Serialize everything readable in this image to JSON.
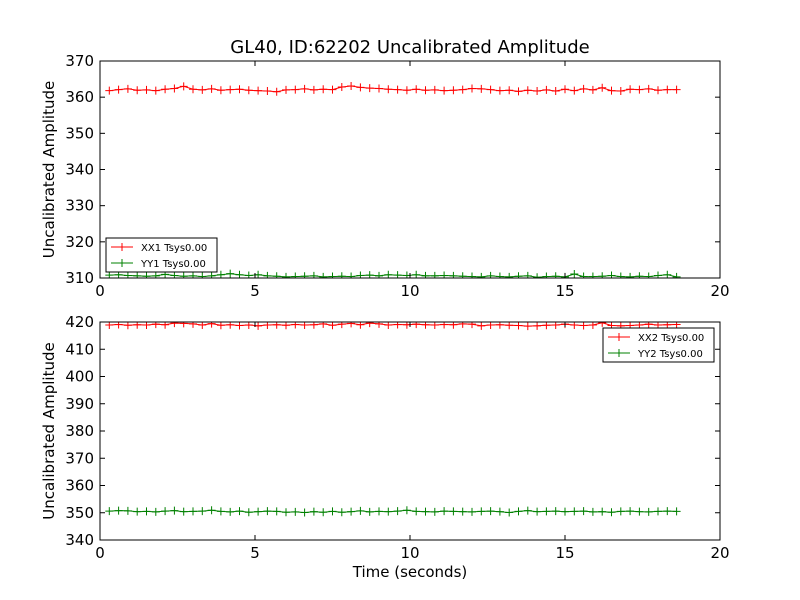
{
  "figure_title": "GL40, ID:62202 Uncalibrated Amplitude",
  "chart_data": [
    {
      "type": "line",
      "ylabel": "Uncalibrated Amplitude",
      "xlabel": "",
      "xlim": [
        0,
        20
      ],
      "ylim": [
        310,
        370
      ],
      "xticks": [
        0,
        5,
        10,
        15,
        20
      ],
      "yticks": [
        310,
        320,
        330,
        340,
        350,
        360,
        370
      ],
      "grid": false,
      "legend_position": "lower-left",
      "x": [
        0.3,
        0.6,
        0.9,
        1.2,
        1.5,
        1.8,
        2.1,
        2.4,
        2.7,
        3.0,
        3.3,
        3.6,
        3.9,
        4.2,
        4.5,
        4.8,
        5.1,
        5.4,
        5.7,
        6.0,
        6.3,
        6.6,
        6.9,
        7.2,
        7.5,
        7.8,
        8.1,
        8.4,
        8.7,
        9.0,
        9.3,
        9.6,
        9.9,
        10.2,
        10.5,
        10.8,
        11.1,
        11.4,
        11.7,
        12.0,
        12.3,
        12.6,
        12.9,
        13.2,
        13.5,
        13.8,
        14.1,
        14.4,
        14.7,
        15.0,
        15.3,
        15.6,
        15.9,
        16.2,
        16.5,
        16.8,
        17.1,
        17.4,
        17.7,
        18.0,
        18.3,
        18.6
      ],
      "series": [
        {
          "name": "XX1 Tsys0.00",
          "color": "#ff0000",
          "values": [
            361.8,
            362.1,
            362.3,
            361.9,
            362.0,
            361.8,
            362.2,
            362.4,
            363.0,
            362.2,
            362.0,
            362.3,
            361.9,
            362.1,
            362.2,
            361.9,
            361.8,
            361.7,
            361.5,
            362.0,
            362.1,
            362.3,
            362.0,
            362.2,
            362.1,
            362.8,
            363.1,
            362.7,
            362.5,
            362.4,
            362.2,
            362.1,
            361.9,
            362.2,
            361.9,
            362.0,
            361.8,
            361.9,
            362.1,
            362.4,
            362.3,
            362.1,
            361.8,
            361.9,
            361.6,
            361.9,
            361.7,
            362.0,
            361.7,
            362.2,
            361.8,
            362.3,
            362.0,
            362.6,
            361.8,
            361.7,
            362.2,
            362.1,
            362.3,
            361.9,
            362.1,
            362.1
          ]
        },
        {
          "name": "YY1 Tsys0.00",
          "color": "#008000",
          "values": [
            310.8,
            310.9,
            310.7,
            310.6,
            310.5,
            310.6,
            311.0,
            310.7,
            310.5,
            310.6,
            310.4,
            310.6,
            310.9,
            311.2,
            310.9,
            310.7,
            310.9,
            310.6,
            310.5,
            310.3,
            310.4,
            310.5,
            310.6,
            310.3,
            310.4,
            310.5,
            310.4,
            310.7,
            310.8,
            310.6,
            310.9,
            310.8,
            310.7,
            310.9,
            310.6,
            310.6,
            310.7,
            310.6,
            310.5,
            310.4,
            310.3,
            310.6,
            310.4,
            310.3,
            310.5,
            310.6,
            310.2,
            310.4,
            310.5,
            310.3,
            311.1,
            310.4,
            310.4,
            310.5,
            310.7,
            310.4,
            310.3,
            310.5,
            310.4,
            310.7,
            310.9,
            310.3
          ]
        }
      ]
    },
    {
      "type": "line",
      "ylabel": "Uncalibrated Amplitude",
      "xlabel": "Time (seconds)",
      "xlim": [
        0,
        20
      ],
      "ylim": [
        340,
        420
      ],
      "xticks": [
        0,
        5,
        10,
        15,
        20
      ],
      "yticks": [
        340,
        350,
        360,
        370,
        380,
        390,
        400,
        410,
        420
      ],
      "grid": false,
      "legend_position": "upper-right",
      "x": [
        0.3,
        0.6,
        0.9,
        1.2,
        1.5,
        1.8,
        2.1,
        2.4,
        2.7,
        3.0,
        3.3,
        3.6,
        3.9,
        4.2,
        4.5,
        4.8,
        5.1,
        5.4,
        5.7,
        6.0,
        6.3,
        6.6,
        6.9,
        7.2,
        7.5,
        7.8,
        8.1,
        8.4,
        8.7,
        9.0,
        9.3,
        9.6,
        9.9,
        10.2,
        10.5,
        10.8,
        11.1,
        11.4,
        11.7,
        12.0,
        12.3,
        12.6,
        12.9,
        13.2,
        13.5,
        13.8,
        14.1,
        14.4,
        14.7,
        15.0,
        15.3,
        15.6,
        15.9,
        16.2,
        16.5,
        16.8,
        17.1,
        17.4,
        17.7,
        18.0,
        18.3,
        18.6
      ],
      "series": [
        {
          "name": "XX2 Tsys0.00",
          "color": "#ff0000",
          "values": [
            418.9,
            419.1,
            418.8,
            419.0,
            418.9,
            419.2,
            419.0,
            419.6,
            419.5,
            419.3,
            418.9,
            419.4,
            418.8,
            419.0,
            418.7,
            418.9,
            418.6,
            418.9,
            419.0,
            418.8,
            419.1,
            418.9,
            419.0,
            419.3,
            418.8,
            419.2,
            419.5,
            419.0,
            419.6,
            419.3,
            418.9,
            419.1,
            419.0,
            419.2,
            419.0,
            418.9,
            419.1,
            419.0,
            419.3,
            419.2,
            418.6,
            418.9,
            419.0,
            418.8,
            418.7,
            418.5,
            418.6,
            418.8,
            418.9,
            419.2,
            418.9,
            418.7,
            418.9,
            419.7,
            418.7,
            418.6,
            418.7,
            418.9,
            419.2,
            418.9,
            419.0,
            419.1
          ]
        },
        {
          "name": "YY2 Tsys0.00",
          "color": "#008000",
          "values": [
            350.6,
            350.8,
            350.7,
            350.4,
            350.5,
            350.3,
            350.6,
            350.8,
            350.4,
            350.5,
            350.6,
            350.9,
            350.5,
            350.3,
            350.6,
            350.2,
            350.4,
            350.6,
            350.5,
            350.2,
            350.3,
            350.1,
            350.4,
            350.2,
            350.5,
            350.2,
            350.4,
            350.7,
            350.3,
            350.5,
            350.4,
            350.6,
            350.9,
            350.5,
            350.4,
            350.3,
            350.6,
            350.5,
            350.4,
            350.3,
            350.5,
            350.6,
            350.4,
            350.1,
            350.5,
            350.8,
            350.4,
            350.5,
            350.6,
            350.4,
            350.5,
            350.6,
            350.3,
            350.4,
            350.2,
            350.5,
            350.6,
            350.4,
            350.3,
            350.5,
            350.6,
            350.5
          ]
        }
      ]
    }
  ]
}
